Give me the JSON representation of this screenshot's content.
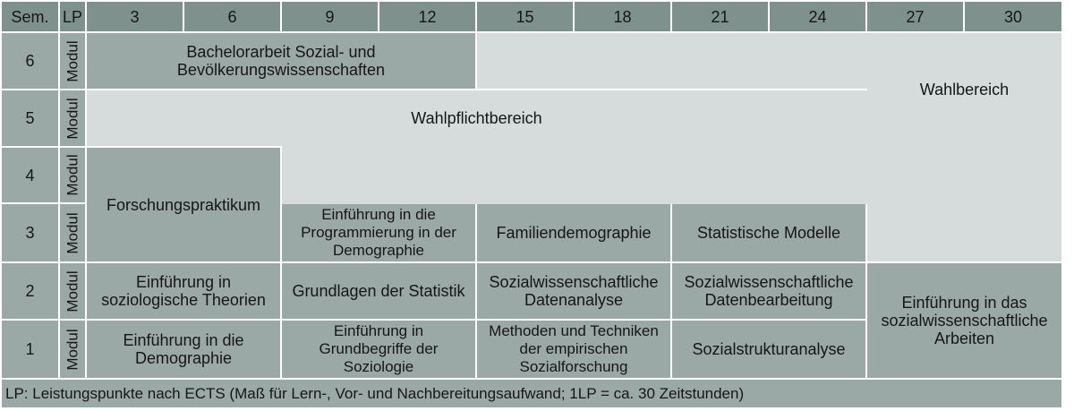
{
  "header": {
    "sem_label": "Sem.",
    "lp_label": "LP",
    "columns": [
      "3",
      "6",
      "9",
      "12",
      "15",
      "18",
      "21",
      "24",
      "27",
      "30"
    ]
  },
  "rows": [
    {
      "semester": "6",
      "modul_label": "Modul"
    },
    {
      "semester": "5",
      "modul_label": "Modul"
    },
    {
      "semester": "4",
      "modul_label": "Modul"
    },
    {
      "semester": "3",
      "modul_label": "Modul"
    },
    {
      "semester": "2",
      "modul_label": "Modul"
    },
    {
      "semester": "1",
      "modul_label": "Modul"
    }
  ],
  "modules": {
    "bachelorarbeit": "Bachelorarbeit Sozial- und\nBevölkerungswissenschaften",
    "wahlpflichtbereich": "Wahlpflichtbereich",
    "wahlbereich": "Wahlbereich",
    "forschungspraktikum": "Forschungspraktikum",
    "programmierung": "Einführung in die\nProgrammierung in der\nDemographie",
    "familiendemographie": "Familiendemographie",
    "statistische_modelle": "Statistische Modelle",
    "soziologische_theorien": "Einführung in\nsoziologische Theorien",
    "statistik": "Grundlagen der Statistik",
    "datenanalyse": "Sozialwissenschaftliche\nDatenanalyse",
    "datenbearbeitung": "Sozialwissenschaftliche\nDatenbearbeitung",
    "arbeiten": "Einführung in das\nsozialwissenschaftliche\nArbeiten",
    "demographie": "Einführung in die\nDemographie",
    "grundbegriffe": "Einführung in\nGrundbegriffe der\nSoziologie",
    "methoden": "Methoden und Techniken\nder empirischen\nSozialforschung",
    "sozialstruktur": "Sozialstrukturanalyse"
  },
  "footer": "LP: Leistungspunkte nach ECTS (Maß für Lern-, Vor- und Nachbereitungsaufwand; 1LP = ca. 30 Zeitstunden)",
  "colors": {
    "header": "#7f918d",
    "module_dark": "#9aa8a6",
    "module_light": "#d5dcdb",
    "grid_lines": "#ffffff"
  }
}
